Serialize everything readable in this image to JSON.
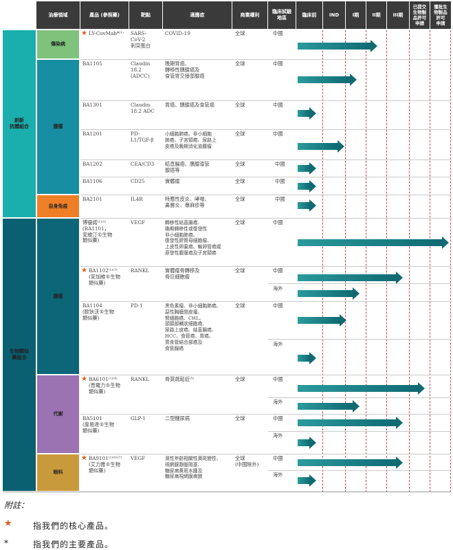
{
  "header": {
    "area": "治療領域",
    "product": "產品 (參照藥)",
    "target": "靶點",
    "indication": "適應症",
    "rights": "商業權利",
    "region": "臨床試驗\n地區",
    "preclinical": "臨床前",
    "ind": "IND",
    "phase1": "I期",
    "phase2": "II期",
    "phase3": "III期",
    "submitted": "已提交\n生物製\n品許可\n申請",
    "approved": "獲批生\n物製品\n許可\n申請"
  },
  "groups": {
    "innovative": "創新\n抗體組合",
    "biosimilar": "生物類似\n藥組合"
  },
  "subareas": {
    "infectious": "傳染病",
    "oncology1": "腫瘤",
    "autoimmune": "自身免疫",
    "oncology2": "腫瘤",
    "metabolic": "代謝",
    "ophthalmology": "眼科"
  },
  "rows": [
    {
      "product": "LY-CovMab*⁽¹⁾",
      "target": "SARS-\nCoV-2\n刺突蛋白",
      "indication": "COVID-19",
      "rights": "全球",
      "region": "中國"
    },
    {
      "product": "BA1105",
      "target": "Claudin\n18.2\n(ADCC)",
      "indication": "晚期胃癌、\n轉移性胰腺癌及\n食管胃交接部腺癌",
      "rights": "全球",
      "region": "中國"
    },
    {
      "product": "BA1301",
      "target": "Claudin\n18.2 ADC",
      "indication": "胃癌、胰腺癌及食管癌",
      "rights": "全球",
      "region": "中國"
    },
    {
      "product": "BA1201",
      "target": "PD-\nL1/TGF-β",
      "indication": "小細胞肺癌、非小細胞\n肺癌、子宮頸癌、尿路上\n皮癌及晚期消化道腫瘤",
      "rights": "全球",
      "region": "中國"
    },
    {
      "product": "BA1202",
      "target": "CEA/CD3",
      "indication": "結直腸癌、胰腺導管\n腺癌等",
      "rights": "全球",
      "region": "中國"
    },
    {
      "product": "BA1106",
      "target": "CD25",
      "indication": "實體瘤",
      "rights": "全球",
      "region": "中國"
    },
    {
      "product": "BA2101",
      "target": "IL4R",
      "indication": "特應性皮炎、哮喘、\n鼻竇炎、蕁麻疹等",
      "rights": "全球",
      "region": "中國"
    },
    {
      "product": "博優諾⁽¹⁾⁽²⁾\n(BA1101，\n安維汀®生物\n類似藥)",
      "target": "VEGF",
      "indication": "轉移性結直腸癌、\n晚期轉移性或復發性\n非小細胞肺癌、\n復發性膠質母細胞瘤、\n上皮性卵巢癌、輸卵管癌或\n原發性腹膜癌及子宮頸癌",
      "rights": "全球",
      "region": "中國"
    },
    {
      "product": "BA1102⁽¹⁾⁽³⁾\n(安加維®生物\n類似藥)",
      "target": "RANKL",
      "indication": "實體瘤骨轉移及\n骨巨細胞瘤",
      "rights": "全球",
      "region": "中國",
      "region2": "海外"
    },
    {
      "product": "BA1104\n(歐狄沃®生物\n類似藥)",
      "target": "PD-1",
      "indication": "黑色素瘤、非小細胞肺癌、\n惡性胸膜間皮瘤、\n腎細胞癌、CHL、\n頭頸部鱗狀細胞癌、\n尿路上皮癌、結直腸癌、\nHCC、食管癌、胃癌、\n胃食管結合部癌及\n食管腺癌",
      "rights": "全球",
      "region": "中國",
      "region2": "海外"
    },
    {
      "product": "BA6101⁽¹⁾⁽⁴⁾\n(普羅力®生物\n類似藥)",
      "target": "RANKL",
      "indication": "骨質疏鬆症⁽⁵⁾",
      "rights": "全球",
      "region": "中國",
      "region2": "海外"
    },
    {
      "product": "BA5101\n(度易達®生物\n類似藥)",
      "target": "GLP-1",
      "indication": "二型糖尿病",
      "rights": "全球",
      "region": "中國",
      "region2": "海外"
    },
    {
      "product": "BA9101⁽¹⁾⁽⁶⁾⁽⁷⁾\n(艾力雅®生物\n類似藥)",
      "target": "VEGF",
      "indication": "濕性年齡相關性黃斑變性、\n視網膜靜脈阻塞、\n糖尿病黃斑水腫及\n糖尿病視網膜病變",
      "rights": "全球\n(中國除外)",
      "region": "中國",
      "region2": "海外"
    }
  ],
  "colors": {
    "innovative_group": "#1aaeac",
    "biosimilar_group": "#0a5f70",
    "infectious": "#7ec27c",
    "oncology1": "#188ea2",
    "autoimmune": "#ee7f27",
    "oncology2": "#0c6678",
    "metabolic": "#9b73b3",
    "ophthalmology": "#c99a3c"
  },
  "footnotes": {
    "title": "附註：",
    "star_symbol": "★",
    "star_text": "指我們的核心產品。",
    "asterisk_symbol": "*",
    "asterisk_text": "指我們的主要產品。"
  }
}
